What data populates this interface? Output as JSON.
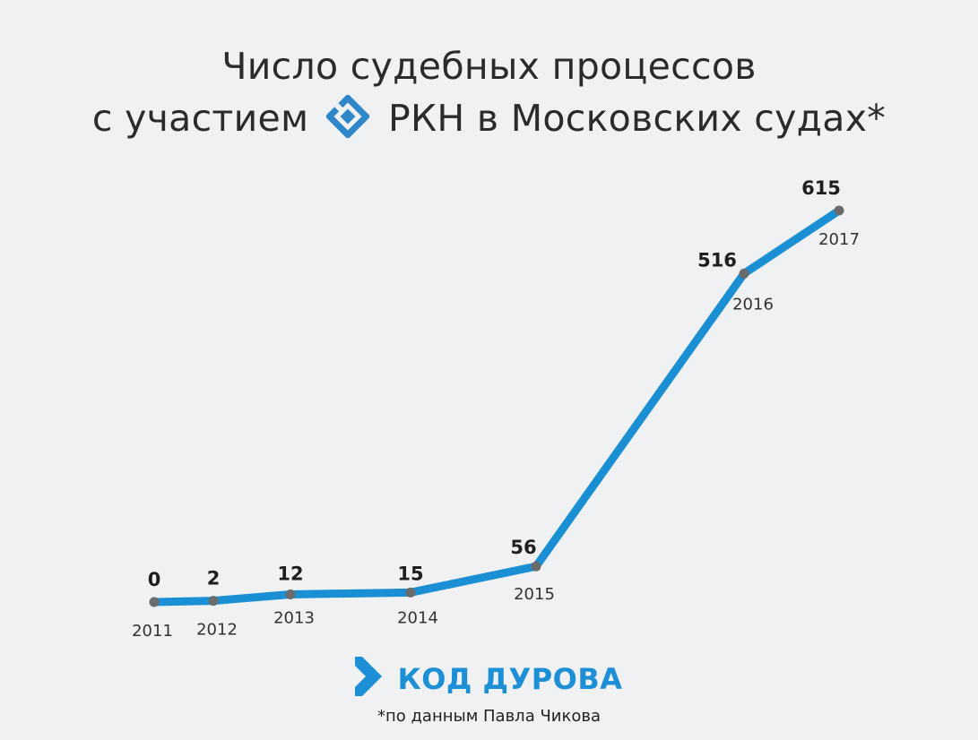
{
  "title": {
    "line1": "Число судебных процессов",
    "line2_before_logo": "с участием",
    "line2_after_logo": "РКН в Московских судах*"
  },
  "chart_data": {
    "type": "line",
    "title": "Число судебных процессов с участием РКН в Московских судах*",
    "x": [
      "2011",
      "2012",
      "2013",
      "2014",
      "2015",
      "2016",
      "2017"
    ],
    "series": [
      {
        "values": [
          0,
          2,
          12,
          15,
          56,
          516,
          615
        ]
      }
    ],
    "data_labels": [
      "0",
      "2",
      "12",
      "15",
      "56",
      "516",
      "615"
    ],
    "xlabel": "",
    "ylabel": "",
    "grid": false,
    "legend": "none",
    "colors": {
      "line": "#1b8fd4",
      "marker": "#6b6b6b"
    }
  },
  "branding": {
    "name": "КОД ДУРОВА",
    "color": "#1c8fd6",
    "icon": "chevron-right-icon",
    "rkn_logo_icon": "rkn-shield-logo-icon"
  },
  "footnote": "*по данным Павла Чикова"
}
